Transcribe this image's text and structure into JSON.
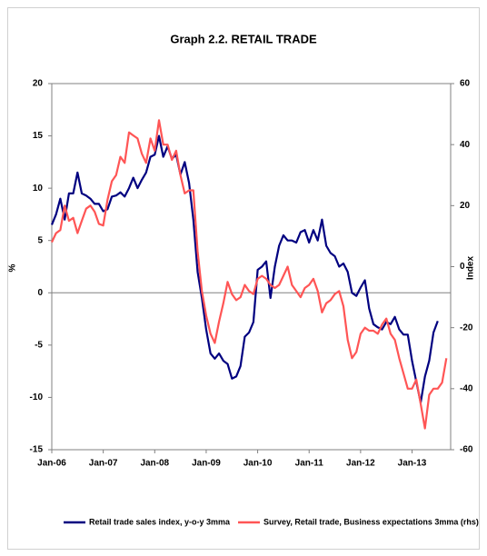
{
  "chart_data": {
    "type": "line",
    "title": "Graph 2.2. RETAIL TRADE",
    "y_label": "%",
    "y2_label": "Index",
    "categories": [
      "Jan-06",
      null,
      null,
      null,
      null,
      null,
      null,
      null,
      null,
      null,
      null,
      null,
      "Jan-07",
      null,
      null,
      null,
      null,
      null,
      null,
      null,
      null,
      null,
      null,
      null,
      "Jan-08",
      null,
      null,
      null,
      null,
      null,
      null,
      null,
      null,
      null,
      null,
      null,
      "Jan-09",
      null,
      null,
      null,
      null,
      null,
      null,
      null,
      null,
      null,
      null,
      null,
      "Jan-10",
      null,
      null,
      null,
      null,
      null,
      null,
      null,
      null,
      null,
      null,
      null,
      "Jan-11",
      null,
      null,
      null,
      null,
      null,
      null,
      null,
      null,
      null,
      null,
      null,
      "Jan-12",
      null,
      null,
      null,
      null,
      null,
      null,
      null,
      null,
      null,
      null,
      null,
      "Jan-13",
      null,
      null,
      null,
      null,
      null,
      null,
      null,
      null
    ],
    "series": [
      {
        "name": "Retail trade sales index, y-o-y 3mma",
        "color": "#000080",
        "values": [
          6.5,
          7.5,
          9,
          7,
          9.5,
          9.5,
          11.5,
          9.5,
          9.3,
          9,
          8.5,
          8.5,
          7.8,
          8,
          9.2,
          9.3,
          9.6,
          9.2,
          10,
          11,
          10,
          10.8,
          11.5,
          13,
          13.2,
          15,
          13,
          14,
          12.8,
          13.2,
          11.3,
          12.5,
          10.5,
          7,
          2,
          -0.5,
          -3.5,
          -5.8,
          -6.3,
          -5.8,
          -6.5,
          -6.8,
          -8.2,
          -8,
          -7,
          -4.2,
          -3.8,
          -2.8,
          2.2,
          2.5,
          3,
          -0.5,
          2.5,
          4.5,
          5.5,
          5,
          5,
          4.8,
          5.8,
          6,
          4.8,
          6,
          5,
          7,
          4.5,
          3.8,
          3.5,
          2.5,
          2.8,
          2,
          0,
          -0.3,
          0.5,
          1.2,
          -1.5,
          -3,
          -3.3,
          -3.5,
          -2.8,
          -3,
          -2.3,
          -3.5,
          -4,
          -4,
          -6.5,
          -8.5,
          -10.5,
          -8,
          -6.5,
          -3.8,
          -2.7,
          null,
          null
        ]
      },
      {
        "name": "Survey, Retail trade, Business expectations 3mma (rhs)",
        "color": "#ff5555",
        "axis": "y2",
        "values": [
          8,
          11,
          12,
          20,
          15,
          16,
          11,
          15,
          19,
          20,
          18,
          14,
          13.5,
          22,
          28,
          30,
          36,
          34,
          44,
          43,
          42,
          37,
          34,
          42,
          38,
          48,
          40,
          40,
          35,
          38,
          30,
          24,
          25,
          25,
          5,
          -8,
          -16,
          -22,
          -25,
          -18,
          -12,
          -5,
          -9,
          -11,
          -10,
          -6,
          -8,
          -9,
          -4,
          -3,
          -4,
          -6,
          -7,
          -6,
          -3,
          0,
          -6,
          -8,
          -10,
          -7,
          -6,
          -4,
          -8,
          -15,
          -12,
          -11,
          -9,
          -8,
          -13,
          -24,
          -30,
          -28,
          -22,
          -20,
          -21,
          -21,
          -22,
          -19,
          -17,
          -22,
          -24,
          -30,
          -35,
          -40,
          -40,
          -37,
          -45,
          -53,
          -42,
          -40,
          -40,
          -38,
          -30
        ]
      }
    ],
    "ylim": [
      -15,
      20
    ],
    "yticks": [
      -15,
      -10,
      -5,
      0,
      5,
      10,
      15,
      20
    ],
    "y2lim": [
      -60,
      60
    ],
    "y2ticks": [
      -60,
      -40,
      -20,
      0,
      20,
      40,
      60
    ],
    "zero_line": true,
    "legend": "bottom"
  }
}
